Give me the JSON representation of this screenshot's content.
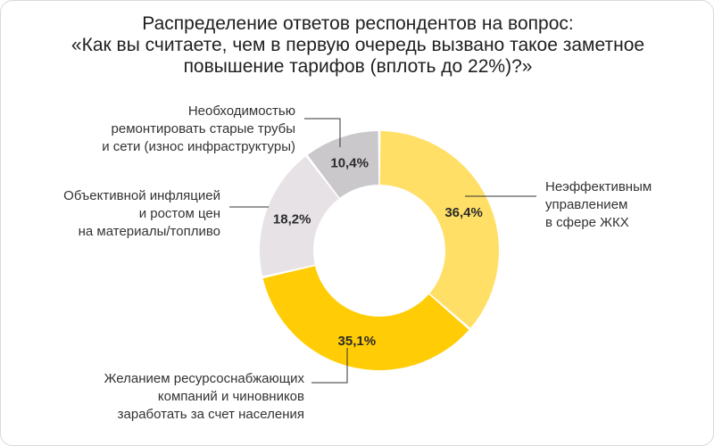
{
  "title_lines": [
    "Распределение ответов респондентов на вопрос:",
    "«Как вы считаете, чем в первую очередь вызвано такое заметное",
    "повышение тарифов (вплоть до 22%)?»"
  ],
  "chart_data": {
    "type": "pie",
    "donut": true,
    "title": "Распределение ответов респондентов на вопрос: «Как вы считаете, чем в первую очередь вызвано такое заметное повышение тарифов (вплоть до 22%)?»",
    "slices": [
      {
        "value_label": "36,4%",
        "value": 36.4,
        "color": "#FFDF66",
        "label_lines": [
          "Неэффективным",
          "управлением",
          "в сфере ЖКХ"
        ]
      },
      {
        "value_label": "35,1%",
        "value": 35.1,
        "color": "#FFCC05",
        "label_lines": [
          "Желанием ресурсоснабжающих",
          "компаний и чиновников",
          "заработать за счет населения"
        ]
      },
      {
        "value_label": "18,2%",
        "value": 18.2,
        "color": "#E6E2E6",
        "label_lines": [
          "Объективной инфляцией",
          "и ростом цен",
          "на материалы/топливо"
        ]
      },
      {
        "value_label": "10,4%",
        "value": 10.4,
        "color": "#CBC8CC",
        "label_lines": [
          "Необходимостью",
          "ремонтировать старые трубы",
          "и сети (износ инфраструктуры)"
        ]
      }
    ]
  }
}
